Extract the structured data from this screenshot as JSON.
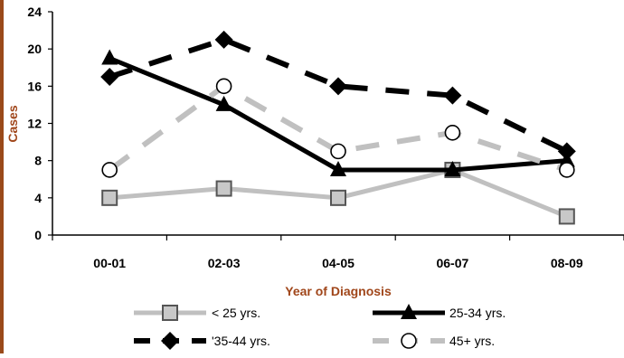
{
  "chart_data": {
    "type": "line",
    "xlabel": "Year of Diagnosis",
    "ylabel": "Cases",
    "categories": [
      "00-01",
      "02-03",
      "04-05",
      "06-07",
      "08-09"
    ],
    "ylim": [
      0,
      24
    ],
    "yticks": [
      0,
      4,
      8,
      12,
      16,
      20,
      24
    ],
    "grid": false,
    "legend_position": "bottom",
    "series": [
      {
        "name": "< 25 yrs.",
        "values": [
          4,
          5,
          4,
          7,
          2
        ],
        "color": "#c0c0c0",
        "line": "solid",
        "marker": "square"
      },
      {
        "name": "25-34 yrs.",
        "values": [
          19,
          14,
          7,
          7,
          8
        ],
        "color": "#000000",
        "line": "solid",
        "marker": "triangle"
      },
      {
        "name": "'35-44 yrs.",
        "values": [
          17,
          21,
          16,
          15,
          9
        ],
        "color": "#000000",
        "line": "dashed",
        "marker": "diamond"
      },
      {
        "name": "45+ yrs.",
        "values": [
          7,
          16,
          9,
          11,
          7
        ],
        "color": "#c0c0c0",
        "line": "dashed",
        "marker": "circle"
      }
    ],
    "axis_label_color": "#a0461a"
  }
}
